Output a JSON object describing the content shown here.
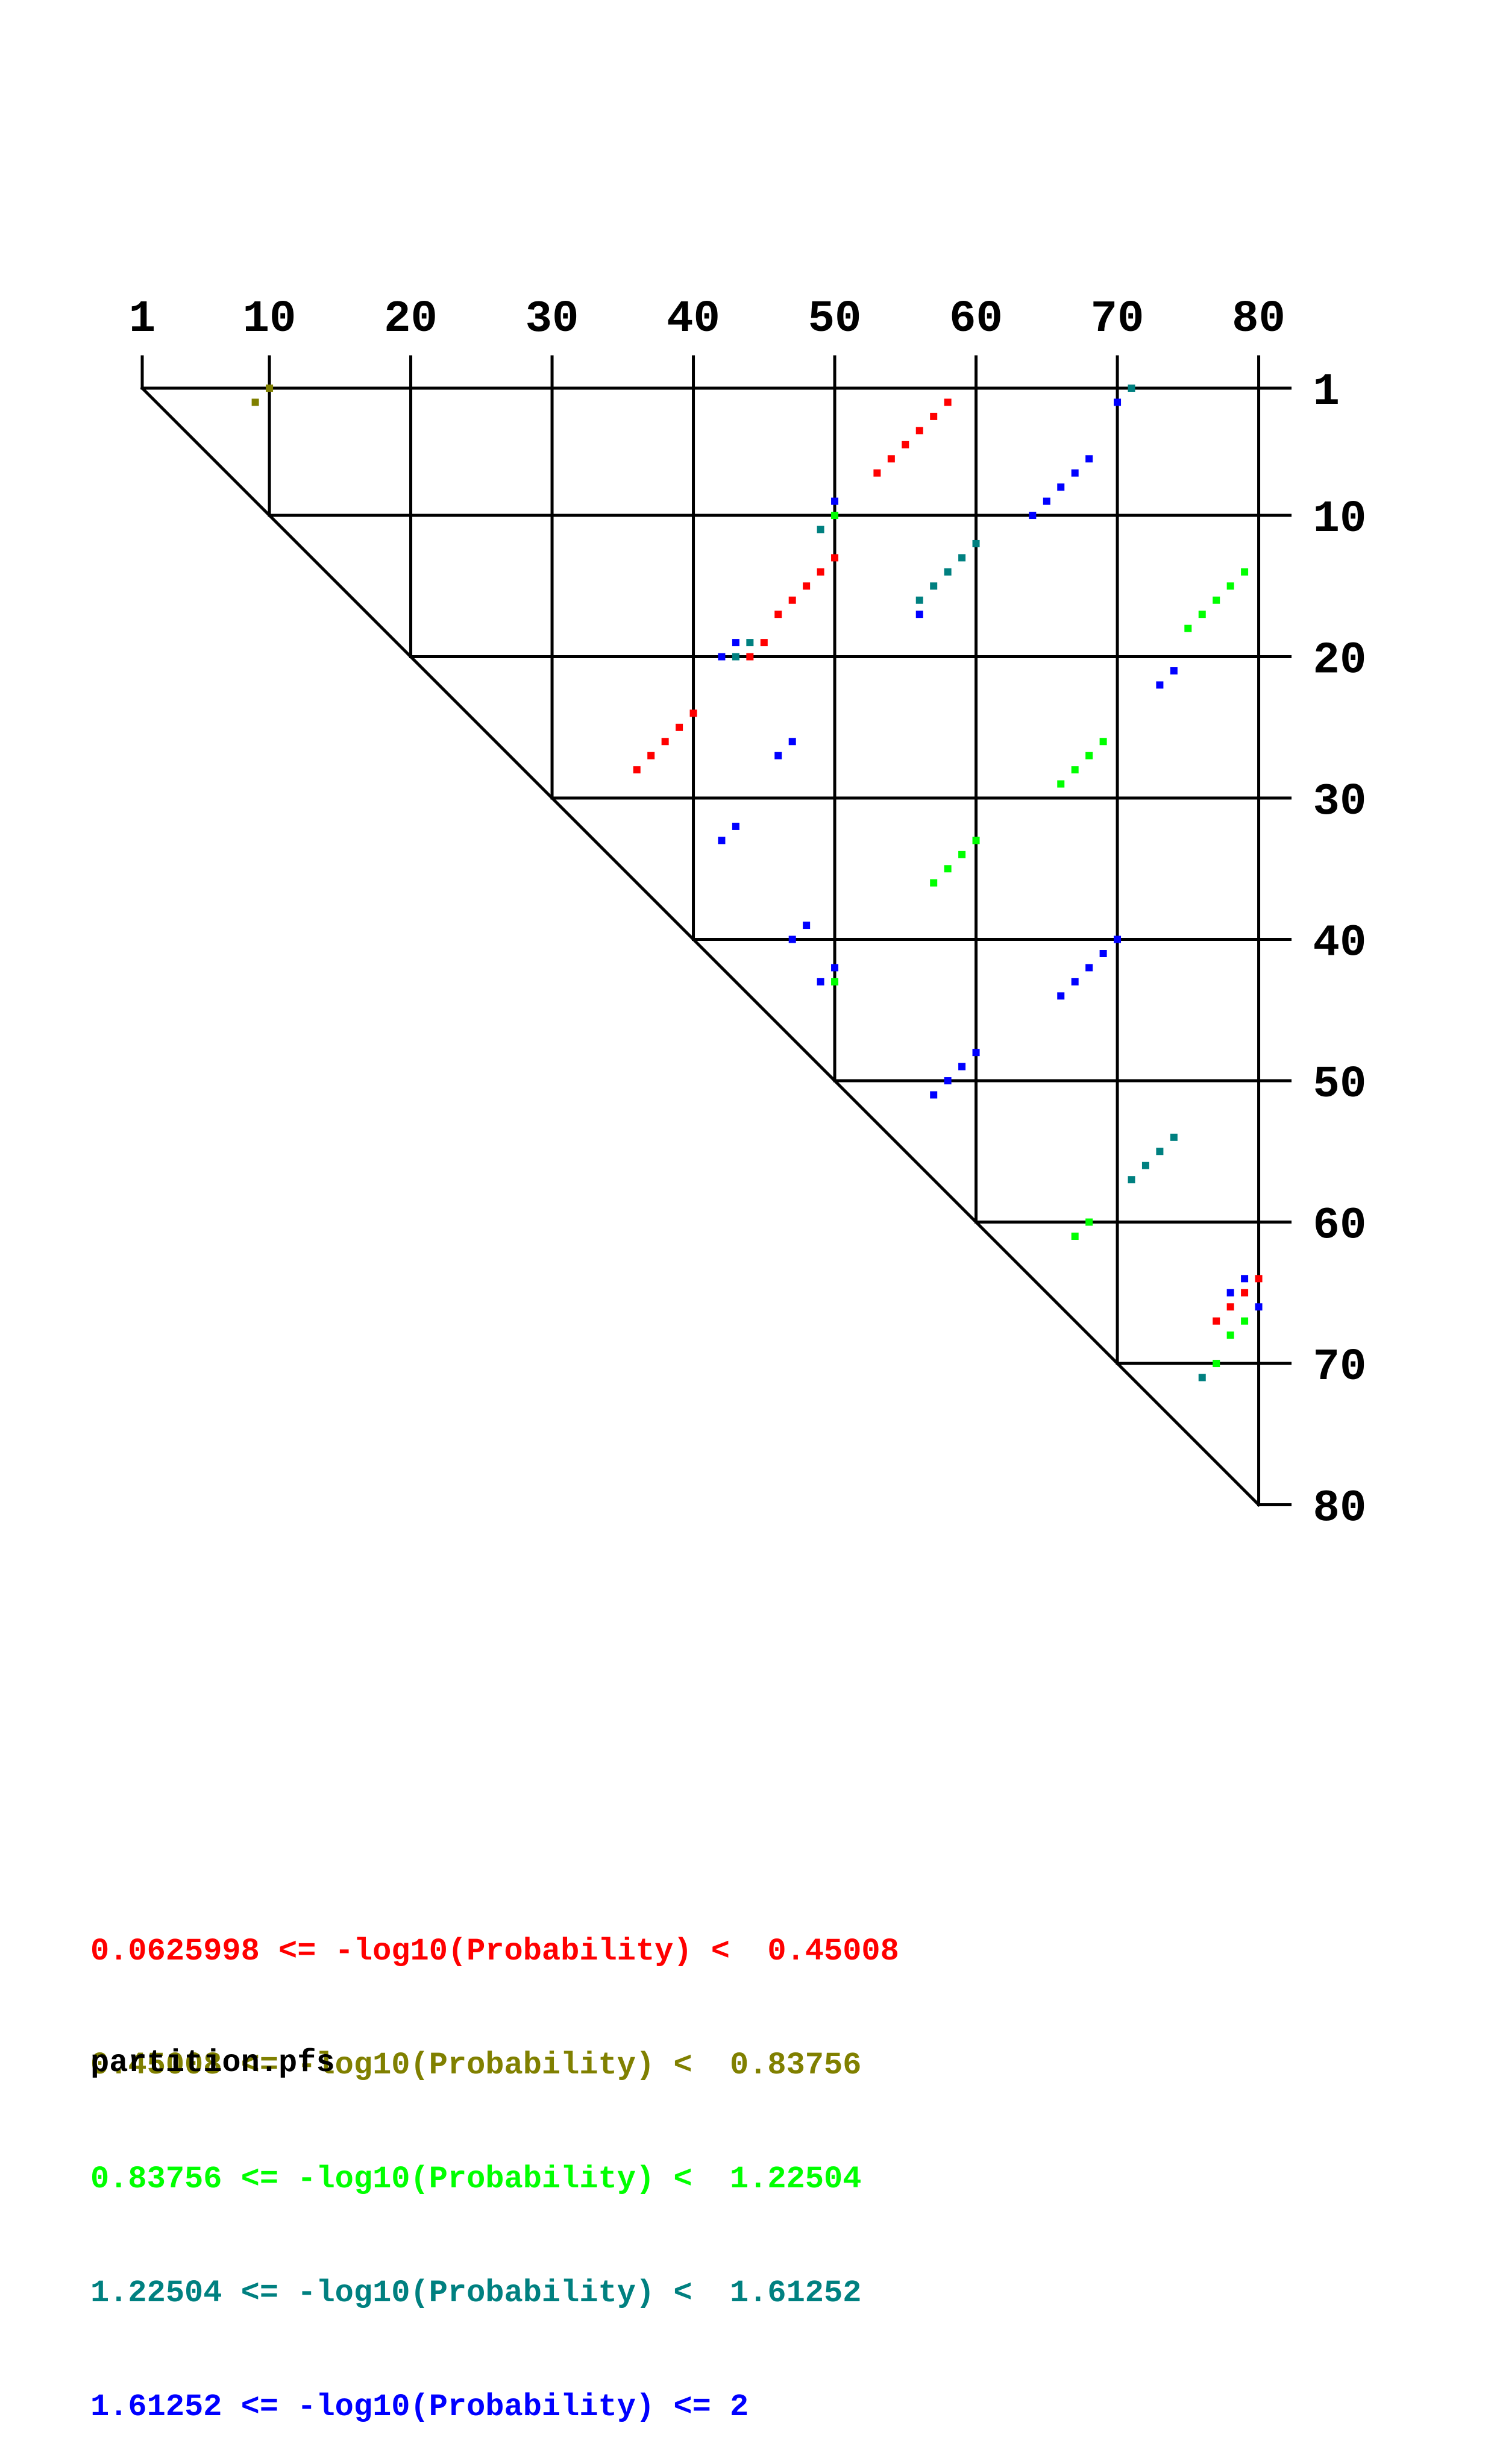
{
  "chart_data": {
    "type": "scatter",
    "subtype": "RNA base-pair probability dot plot (upper triangle)",
    "sequence_length": 80,
    "axis_range": [
      1,
      80
    ],
    "x_tick_labels": [
      "1",
      "10",
      "20",
      "30",
      "40",
      "50",
      "60",
      "70",
      "80"
    ],
    "y_tick_labels": [
      "1",
      "10",
      "20",
      "30",
      "40",
      "50",
      "60",
      "70",
      "80"
    ],
    "grid": true,
    "legend_placement": "bottom-left",
    "legend": [
      {
        "text": "0.0625998 <= -log10(Probability) <  0.45008",
        "color": "#ff0000"
      },
      {
        "text": "0.45008 <= -log10(Probability) <  0.83756",
        "color": "#808000"
      },
      {
        "text": "0.83756 <= -log10(Probability) <  1.22504",
        "color": "#00ff00"
      },
      {
        "text": "1.22504 <= -log10(Probability) <  1.61252",
        "color": "#008080"
      },
      {
        "text": "1.61252 <= -log10(Probability) <= 2",
        "color": "#0000ff"
      }
    ],
    "series": [
      {
        "color": "#ff0000",
        "points": [
          [
            2,
            58
          ],
          [
            3,
            57
          ],
          [
            4,
            56
          ],
          [
            5,
            55
          ],
          [
            6,
            54
          ],
          [
            7,
            53
          ],
          [
            13,
            50
          ],
          [
            14,
            49
          ],
          [
            15,
            48
          ],
          [
            16,
            47
          ],
          [
            17,
            46
          ],
          [
            19,
            45
          ],
          [
            20,
            44
          ],
          [
            24,
            40
          ],
          [
            25,
            39
          ],
          [
            26,
            38
          ],
          [
            27,
            37
          ],
          [
            28,
            36
          ],
          [
            64,
            80
          ],
          [
            65,
            79
          ],
          [
            66,
            78
          ],
          [
            67,
            77
          ]
        ]
      },
      {
        "color": "#808000",
        "points": [
          [
            1,
            10
          ],
          [
            2,
            9
          ]
        ]
      },
      {
        "color": "#00ff00",
        "points": [
          [
            10,
            50
          ],
          [
            14,
            79
          ],
          [
            15,
            78
          ],
          [
            16,
            77
          ],
          [
            17,
            76
          ],
          [
            18,
            75
          ],
          [
            26,
            69
          ],
          [
            27,
            68
          ],
          [
            28,
            67
          ],
          [
            29,
            66
          ],
          [
            33,
            60
          ],
          [
            34,
            59
          ],
          [
            35,
            58
          ],
          [
            36,
            57
          ],
          [
            43,
            50
          ],
          [
            60,
            68
          ],
          [
            61,
            67
          ],
          [
            67,
            79
          ],
          [
            68,
            78
          ],
          [
            70,
            77
          ]
        ]
      },
      {
        "color": "#008080",
        "points": [
          [
            1,
            71
          ],
          [
            11,
            49
          ],
          [
            12,
            60
          ],
          [
            13,
            59
          ],
          [
            14,
            58
          ],
          [
            15,
            57
          ],
          [
            16,
            56
          ],
          [
            19,
            44
          ],
          [
            20,
            43
          ],
          [
            54,
            74
          ],
          [
            55,
            73
          ],
          [
            56,
            72
          ],
          [
            57,
            71
          ],
          [
            71,
            76
          ]
        ]
      },
      {
        "color": "#0000ff",
        "points": [
          [
            2,
            70
          ],
          [
            6,
            68
          ],
          [
            7,
            67
          ],
          [
            8,
            66
          ],
          [
            9,
            65
          ],
          [
            10,
            64
          ],
          [
            9,
            50
          ],
          [
            17,
            56
          ],
          [
            19,
            43
          ],
          [
            20,
            42
          ],
          [
            21,
            74
          ],
          [
            22,
            73
          ],
          [
            26,
            47
          ],
          [
            27,
            46
          ],
          [
            32,
            43
          ],
          [
            33,
            42
          ],
          [
            39,
            48
          ],
          [
            40,
            47
          ],
          [
            40,
            70
          ],
          [
            41,
            69
          ],
          [
            42,
            68
          ],
          [
            43,
            67
          ],
          [
            44,
            66
          ],
          [
            42,
            50
          ],
          [
            43,
            49
          ],
          [
            48,
            60
          ],
          [
            49,
            59
          ],
          [
            50,
            58
          ],
          [
            51,
            57
          ],
          [
            64,
            79
          ],
          [
            65,
            78
          ],
          [
            66,
            80
          ]
        ]
      }
    ]
  },
  "footer": {
    "filename": "partition.pfs"
  }
}
